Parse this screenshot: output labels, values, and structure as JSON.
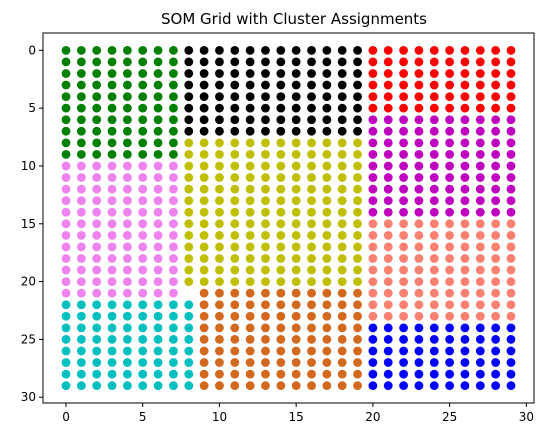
{
  "chart_data": {
    "type": "scatter",
    "title": "SOM Grid with Cluster Assignments",
    "xlabel": "",
    "ylabel": "",
    "xlim": [
      -1.5,
      30.5
    ],
    "ylim": [
      30.5,
      -1.5
    ],
    "y_inverted": true,
    "grid": false,
    "grid_size": [
      30,
      30
    ],
    "x_ticks": [
      0,
      5,
      10,
      15,
      20,
      25,
      30
    ],
    "y_ticks": [
      0,
      5,
      10,
      15,
      20,
      25,
      30
    ],
    "cluster_colors": {
      "green": "#008000",
      "black": "#000000",
      "red": "#ff0000",
      "magenta": "#bf00bf",
      "violet": "#ee82ee",
      "olive": "#bfbf00",
      "salmon": "#fa8072",
      "cyan": "#00bfbf",
      "chocolate": "#d2691e",
      "blue": "#0000ff"
    },
    "clusters": [
      {
        "color": "green",
        "x_range": [
          0,
          7
        ],
        "y_range": [
          0,
          9
        ]
      },
      {
        "color": "black",
        "x_range": [
          8,
          19
        ],
        "y_range": [
          0,
          7
        ]
      },
      {
        "color": "red",
        "x_range": [
          20,
          29
        ],
        "y_range": [
          0,
          5
        ]
      },
      {
        "color": "magenta",
        "x_range": [
          20,
          29
        ],
        "y_range": [
          6,
          14
        ]
      },
      {
        "color": "violet",
        "x_range": [
          0,
          7
        ],
        "y_range": [
          10,
          21
        ]
      },
      {
        "color": "olive",
        "x_range": [
          8,
          19
        ],
        "y_range": [
          8,
          20
        ]
      },
      {
        "color": "salmon",
        "x_range": [
          20,
          29
        ],
        "y_range": [
          15,
          23
        ]
      },
      {
        "color": "cyan",
        "x_range": [
          0,
          8
        ],
        "y_range": [
          22,
          29
        ]
      },
      {
        "color": "chocolate",
        "x_range": [
          9,
          19
        ],
        "y_range": [
          21,
          29
        ]
      },
      {
        "color": "blue",
        "x_range": [
          20,
          29
        ],
        "y_range": [
          24,
          29
        ]
      }
    ]
  }
}
